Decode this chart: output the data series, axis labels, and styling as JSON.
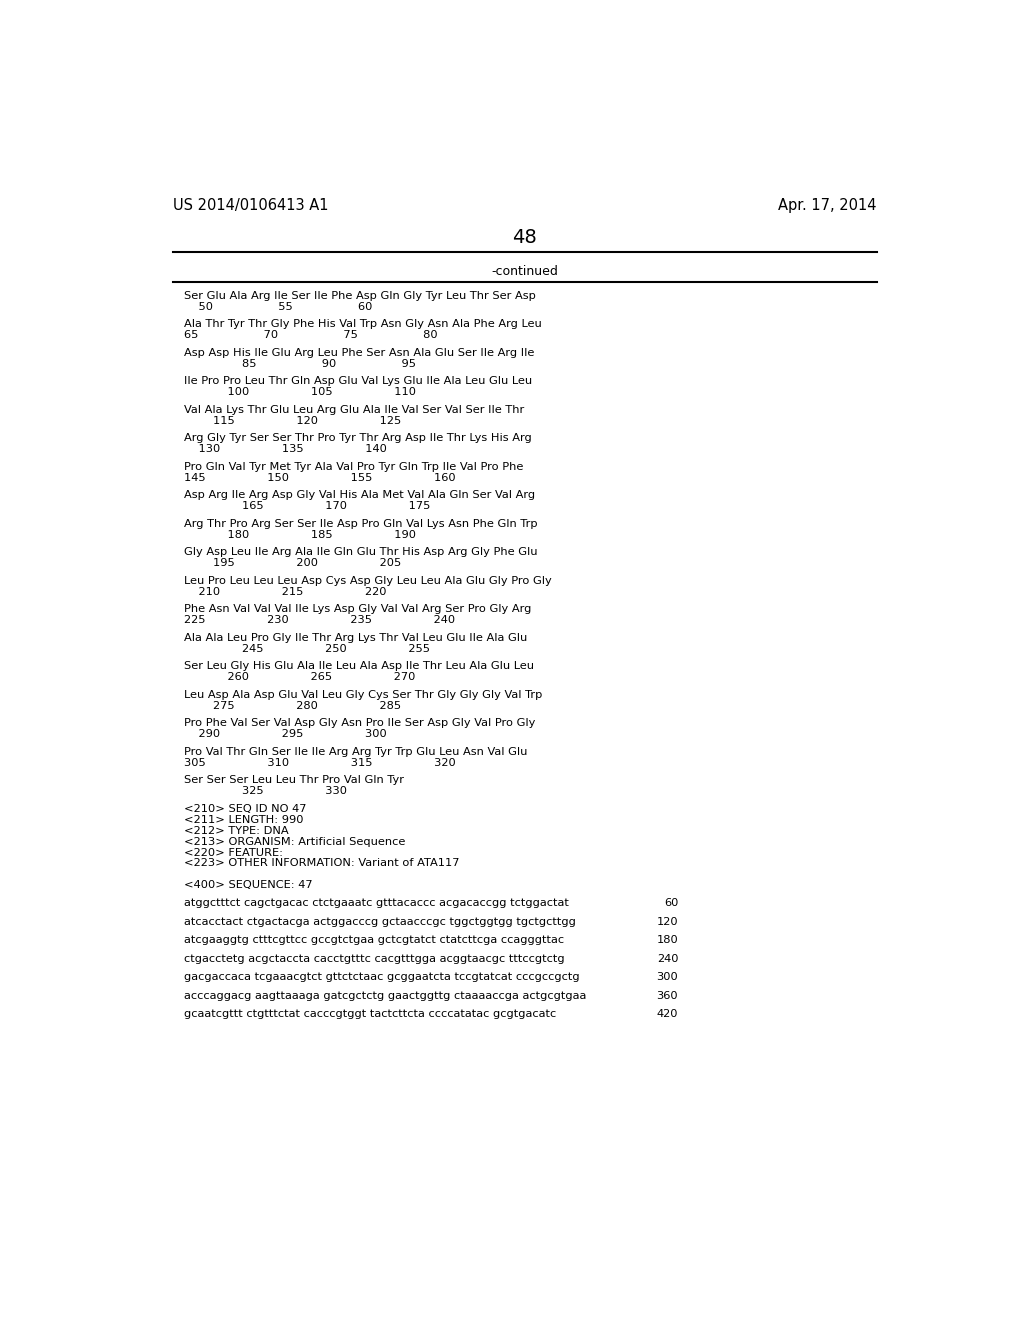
{
  "header_left": "US 2014/0106413 A1",
  "header_right": "Apr. 17, 2014",
  "page_number": "48",
  "continued_label": "-continued",
  "background_color": "#ffffff",
  "text_color": "#000000",
  "seq_content": [
    [
      "Ser Glu Ala Arg Ile Ser Ile Phe Asp Gln Gly Tyr Leu Thr Ser Asp",
      "seq"
    ],
    [
      "    50                  55                  60",
      "num"
    ],
    [
      "",
      "blank"
    ],
    [
      "Ala Thr Tyr Thr Gly Phe His Val Trp Asn Gly Asn Ala Phe Arg Leu",
      "seq"
    ],
    [
      "65                  70                  75                  80",
      "num"
    ],
    [
      "",
      "blank"
    ],
    [
      "Asp Asp His Ile Glu Arg Leu Phe Ser Asn Ala Glu Ser Ile Arg Ile",
      "seq"
    ],
    [
      "                85                  90                  95",
      "num"
    ],
    [
      "",
      "blank"
    ],
    [
      "Ile Pro Pro Leu Thr Gln Asp Glu Val Lys Glu Ile Ala Leu Glu Leu",
      "seq"
    ],
    [
      "            100                 105                 110",
      "num"
    ],
    [
      "",
      "blank"
    ],
    [
      "Val Ala Lys Thr Glu Leu Arg Glu Ala Ile Val Ser Val Ser Ile Thr",
      "seq"
    ],
    [
      "        115                 120                 125",
      "num"
    ],
    [
      "",
      "blank"
    ],
    [
      "Arg Gly Tyr Ser Ser Thr Pro Tyr Thr Arg Asp Ile Thr Lys His Arg",
      "seq"
    ],
    [
      "    130                 135                 140",
      "num"
    ],
    [
      "",
      "blank"
    ],
    [
      "Pro Gln Val Tyr Met Tyr Ala Val Pro Tyr Gln Trp Ile Val Pro Phe",
      "seq"
    ],
    [
      "145                 150                 155                 160",
      "num"
    ],
    [
      "",
      "blank"
    ],
    [
      "Asp Arg Ile Arg Asp Gly Val His Ala Met Val Ala Gln Ser Val Arg",
      "seq"
    ],
    [
      "                165                 170                 175",
      "num"
    ],
    [
      "",
      "blank"
    ],
    [
      "Arg Thr Pro Arg Ser Ser Ile Asp Pro Gln Val Lys Asn Phe Gln Trp",
      "seq"
    ],
    [
      "            180                 185                 190",
      "num"
    ],
    [
      "",
      "blank"
    ],
    [
      "Gly Asp Leu Ile Arg Ala Ile Gln Glu Thr His Asp Arg Gly Phe Glu",
      "seq"
    ],
    [
      "        195                 200                 205",
      "num"
    ],
    [
      "",
      "blank"
    ],
    [
      "Leu Pro Leu Leu Leu Asp Cys Asp Gly Leu Leu Ala Glu Gly Pro Gly",
      "seq"
    ],
    [
      "    210                 215                 220",
      "num"
    ],
    [
      "",
      "blank"
    ],
    [
      "Phe Asn Val Val Val Ile Lys Asp Gly Val Val Arg Ser Pro Gly Arg",
      "seq"
    ],
    [
      "225                 230                 235                 240",
      "num"
    ],
    [
      "",
      "blank"
    ],
    [
      "Ala Ala Leu Pro Gly Ile Thr Arg Lys Thr Val Leu Glu Ile Ala Glu",
      "seq"
    ],
    [
      "                245                 250                 255",
      "num"
    ],
    [
      "",
      "blank"
    ],
    [
      "Ser Leu Gly His Glu Ala Ile Leu Ala Asp Ile Thr Leu Ala Glu Leu",
      "seq"
    ],
    [
      "            260                 265                 270",
      "num"
    ],
    [
      "",
      "blank"
    ],
    [
      "Leu Asp Ala Asp Glu Val Leu Gly Cys Ser Thr Gly Gly Gly Val Trp",
      "seq"
    ],
    [
      "        275                 280                 285",
      "num"
    ],
    [
      "",
      "blank"
    ],
    [
      "Pro Phe Val Ser Val Asp Gly Asn Pro Ile Ser Asp Gly Val Pro Gly",
      "seq"
    ],
    [
      "    290                 295                 300",
      "num"
    ],
    [
      "",
      "blank"
    ],
    [
      "Pro Val Thr Gln Ser Ile Ile Arg Arg Tyr Trp Glu Leu Asn Val Glu",
      "seq"
    ],
    [
      "305                 310                 315                 320",
      "num"
    ],
    [
      "",
      "blank"
    ],
    [
      "Ser Ser Ser Leu Leu Thr Pro Val Gln Tyr",
      "seq"
    ],
    [
      "                325                 330",
      "num"
    ]
  ],
  "meta_lines": [
    "<210> SEQ ID NO 47",
    "<211> LENGTH: 990",
    "<212> TYPE: DNA",
    "<213> ORGANISM: Artificial Sequence",
    "<220> FEATURE:",
    "<223> OTHER INFORMATION: Variant of ATA117"
  ],
  "seq_header": "<400> SEQUENCE: 47",
  "dna_lines": [
    [
      "atggctttct cagctgacac ctctgaaatc gtttacaccc acgacaccgg tctggactat",
      "60"
    ],
    [
      "atcacctact ctgactacga actggacccg gctaacccgc tggctggtgg tgctgcttgg",
      "120"
    ],
    [
      "atcgaaggtg ctttcgttcc gccgtctgaa gctcgtatct ctatcttcga ccagggttac",
      "180"
    ],
    [
      "ctgacctetg acgctaccta cacctgtttc cacgtttgga acggtaacgc tttccgtctg",
      "240"
    ],
    [
      "gacgaccaca tcgaaacgtct gttctctaac gcggaatcta tccgtatcat cccgccgctg",
      "300"
    ],
    [
      "acccaggacg aagttaaaga gatcgctctg gaactggttg ctaaaaccga actgcgtgaa",
      "360"
    ],
    [
      "gcaatcgttt ctgtttctat cacccgtggt tactcttcta ccccatatac gcgtgacatc",
      "420"
    ]
  ]
}
